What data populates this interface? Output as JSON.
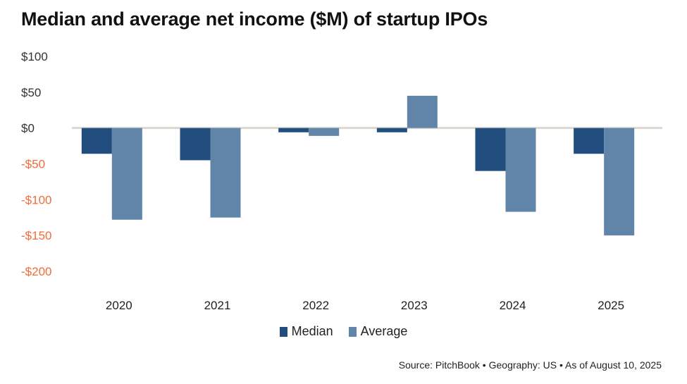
{
  "title": "Median and average net income ($M) of startup IPOs",
  "source": "Source: PitchBook  •  Geography: US  •  As of August 10, 2025",
  "colors": {
    "median": "#214e7e",
    "average": "#6085a8",
    "positive_tick": "#333333",
    "negative_tick": "#f26b3a",
    "zero_line": "#dcd8d0"
  },
  "chart_data": {
    "type": "bar",
    "title": "Median and average net income ($M) of startup IPOs",
    "xlabel": "",
    "ylabel": "",
    "categories": [
      "2020",
      "2021",
      "2022",
      "2023",
      "2024",
      "2025"
    ],
    "series": [
      {
        "name": "Median",
        "values": [
          -36,
          -45,
          -6,
          -6,
          -60,
          -36
        ]
      },
      {
        "name": "Average",
        "values": [
          -128,
          -125,
          -11,
          45,
          -117,
          -150
        ]
      }
    ],
    "ylim": [
      -200,
      100
    ],
    "yticks": [
      100,
      50,
      0,
      -50,
      -100,
      -150,
      -200
    ],
    "ytick_labels": [
      "$100",
      "$50",
      "$0",
      "-$50",
      "-$100",
      "-$150",
      "-$200"
    ],
    "grid": false,
    "legend": {
      "placement": "bottom-center",
      "entries": [
        "Median",
        "Average"
      ]
    }
  }
}
